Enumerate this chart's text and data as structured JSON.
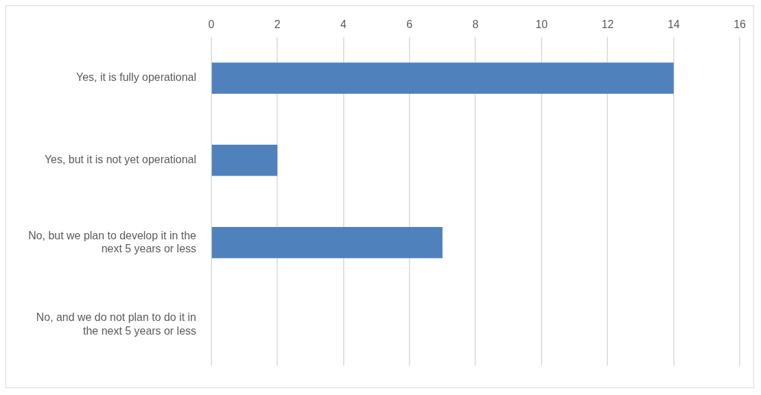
{
  "chart_data": {
    "type": "bar",
    "orientation": "horizontal",
    "categories": [
      "Yes, it is fully operational",
      "Yes, but it is not yet operational",
      "No, but we plan to develop it in the next 5 years or less",
      "No, and we do not plan to do it in the next 5 years or less"
    ],
    "values": [
      14,
      2,
      7,
      0
    ],
    "color": "#4f81bd",
    "xlim": [
      0,
      16
    ],
    "xticks": [
      0,
      2,
      4,
      6,
      8,
      10,
      12,
      14,
      16
    ],
    "grid": "x",
    "legend": false
  }
}
